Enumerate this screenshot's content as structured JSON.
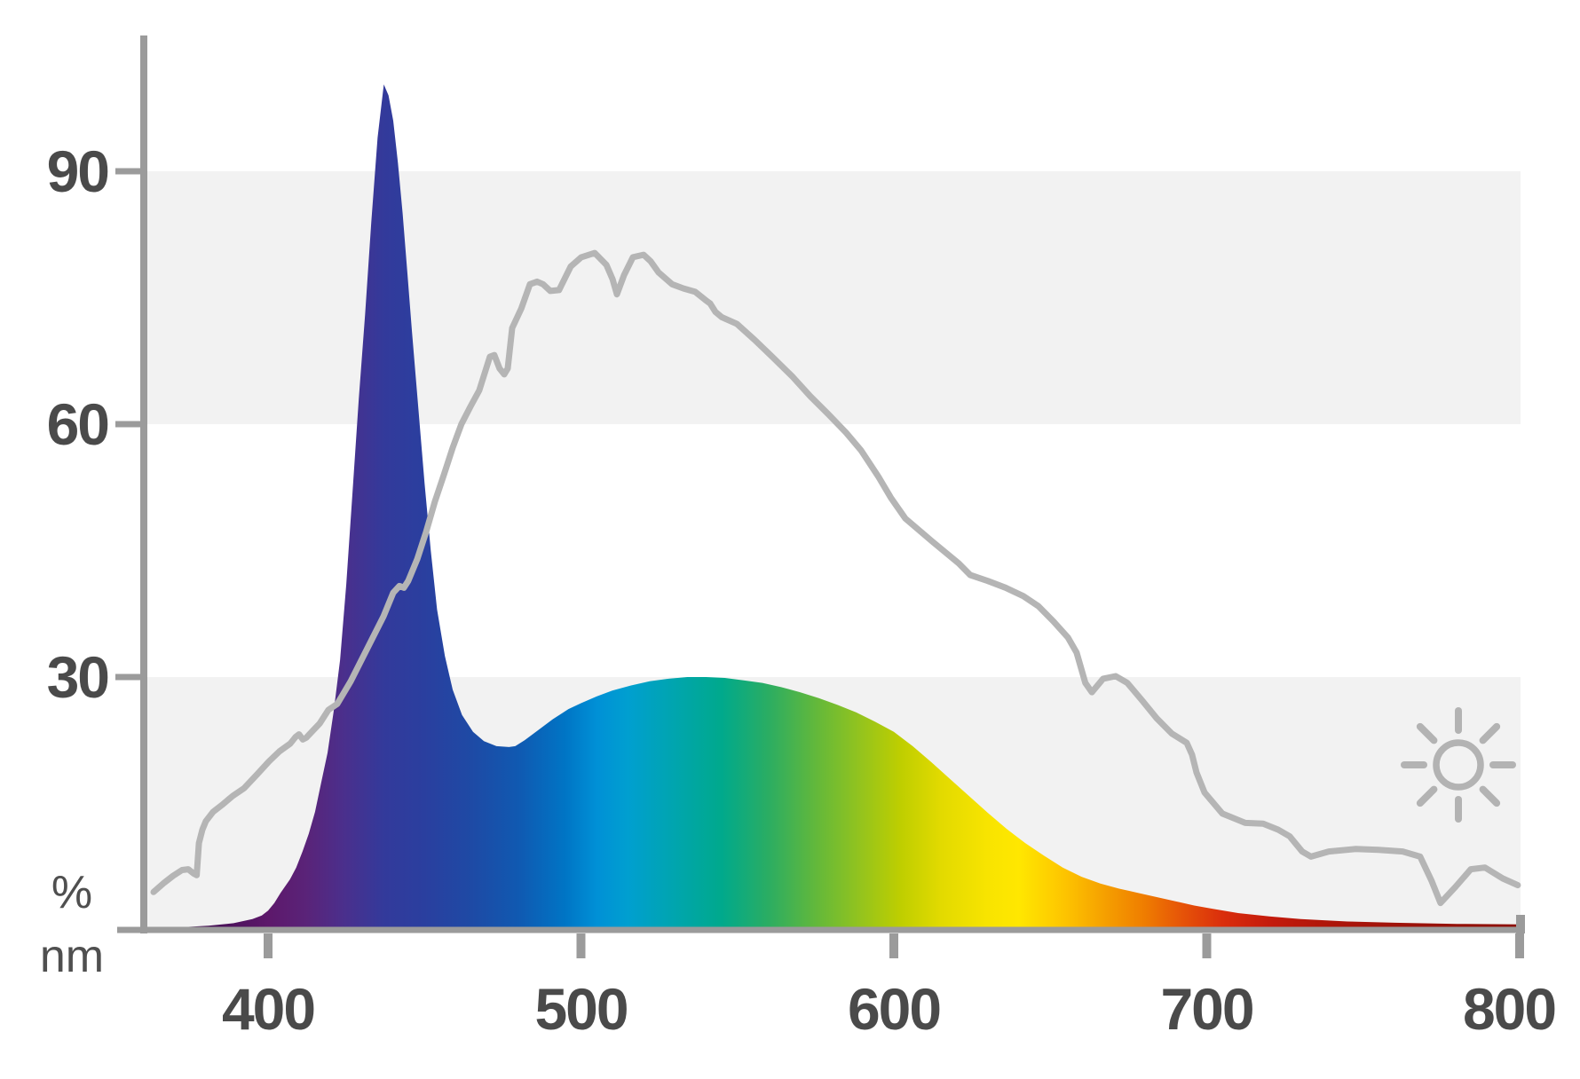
{
  "chart_data": {
    "type": "area",
    "title": "",
    "xlabel": "nm",
    "ylabel": "%",
    "xlim": [
      360,
      800
    ],
    "ylim": [
      0,
      105
    ],
    "x_ticks": [
      400,
      500,
      600,
      700,
      800
    ],
    "y_ticks": [
      90,
      60,
      30
    ],
    "grid": "horizontal gray bands from 0-30% and 60-90%",
    "band_ranges_pct": [
      [
        0,
        30
      ],
      [
        60,
        90
      ]
    ],
    "band_color": "#f2f2f2",
    "legend": "none",
    "series": [
      {
        "name": "led-spectrum",
        "style": "filled area with wavelength rainbow gradient",
        "points_nm_pct": [
          [
            360.5,
            0.15
          ],
          [
            372,
            0.3
          ],
          [
            381,
            0.5
          ],
          [
            389,
            0.8
          ],
          [
            395,
            1.3
          ],
          [
            398,
            1.7
          ],
          [
            400,
            2.3
          ],
          [
            402,
            3.2
          ],
          [
            404,
            4.4
          ],
          [
            407,
            6.0
          ],
          [
            409,
            7.4
          ],
          [
            411,
            9.3
          ],
          [
            413,
            11.4
          ],
          [
            415,
            14.0
          ],
          [
            417,
            17.5
          ],
          [
            419,
            21.0
          ],
          [
            421,
            26.0
          ],
          [
            423,
            32.0
          ],
          [
            425,
            41.0
          ],
          [
            427,
            52.0
          ],
          [
            429,
            63.0
          ],
          [
            431,
            73.0
          ],
          [
            433,
            84.0
          ],
          [
            435,
            94.0
          ],
          [
            437,
            100.3
          ],
          [
            438.5,
            99.0
          ],
          [
            440,
            96.0
          ],
          [
            441.5,
            91.0
          ],
          [
            443,
            85.0
          ],
          [
            444.5,
            78.0
          ],
          [
            446,
            71.0
          ],
          [
            448,
            62.0
          ],
          [
            450,
            53.0
          ],
          [
            452,
            45.0
          ],
          [
            454,
            38.0
          ],
          [
            456.5,
            32.5
          ],
          [
            459,
            28.5
          ],
          [
            462,
            25.5
          ],
          [
            465.5,
            23.5
          ],
          [
            469,
            22.4
          ],
          [
            473,
            21.8
          ],
          [
            477,
            21.7
          ],
          [
            479,
            21.8
          ],
          [
            482,
            22.5
          ],
          [
            486,
            23.6
          ],
          [
            491,
            25.0
          ],
          [
            496,
            26.2
          ],
          [
            500,
            26.9
          ],
          [
            505,
            27.7
          ],
          [
            510,
            28.4
          ],
          [
            516,
            29.0
          ],
          [
            522,
            29.5
          ],
          [
            528,
            29.8
          ],
          [
            534,
            30.0
          ],
          [
            540,
            30.0
          ],
          [
            546,
            29.9
          ],
          [
            552,
            29.6
          ],
          [
            558,
            29.3
          ],
          [
            564,
            28.8
          ],
          [
            570,
            28.2
          ],
          [
            576,
            27.5
          ],
          [
            582,
            26.7
          ],
          [
            588,
            25.8
          ],
          [
            594,
            24.7
          ],
          [
            600,
            23.5
          ],
          [
            606,
            21.8
          ],
          [
            612,
            19.9
          ],
          [
            618,
            17.9
          ],
          [
            624,
            15.9
          ],
          [
            630,
            13.9
          ],
          [
            636,
            12.0
          ],
          [
            642,
            10.3
          ],
          [
            648,
            8.8
          ],
          [
            654,
            7.4
          ],
          [
            660,
            6.3
          ],
          [
            666,
            5.5
          ],
          [
            672,
            4.9
          ],
          [
            678,
            4.4
          ],
          [
            684,
            3.9
          ],
          [
            690,
            3.4
          ],
          [
            696,
            2.9
          ],
          [
            702,
            2.5
          ],
          [
            710,
            2.0
          ],
          [
            720,
            1.6
          ],
          [
            730,
            1.3
          ],
          [
            745,
            1.0
          ],
          [
            760,
            0.85
          ],
          [
            780,
            0.72
          ],
          [
            800,
            0.65
          ]
        ]
      },
      {
        "name": "reference-curve",
        "style": "gray line",
        "color": "#b5b5b5",
        "points_nm_pct": [
          [
            363.4,
            4.5
          ],
          [
            366.8,
            5.6
          ],
          [
            369.6,
            6.4
          ],
          [
            372.5,
            7.1
          ],
          [
            374.5,
            7.2
          ],
          [
            376.2,
            6.7
          ],
          [
            377.2,
            6.5
          ],
          [
            377.9,
            10.3
          ],
          [
            379,
            11.9
          ],
          [
            380.1,
            12.9
          ],
          [
            382.4,
            14.0
          ],
          [
            385.2,
            14.8
          ],
          [
            388.7,
            15.9
          ],
          [
            392.3,
            16.8
          ],
          [
            396.6,
            18.5
          ],
          [
            400.3,
            20.0
          ],
          [
            403.7,
            21.2
          ],
          [
            407.1,
            22.1
          ],
          [
            408.8,
            22.9
          ],
          [
            409.9,
            23.2
          ],
          [
            411.1,
            22.6
          ],
          [
            412.2,
            22.8
          ],
          [
            414.2,
            23.6
          ],
          [
            416.5,
            24.5
          ],
          [
            419.3,
            26.1
          ],
          [
            422.1,
            26.8
          ],
          [
            426.4,
            29.5
          ],
          [
            430.1,
            32.2
          ],
          [
            433.5,
            34.7
          ],
          [
            436.9,
            37.2
          ],
          [
            440,
            40.0
          ],
          [
            442,
            40.8
          ],
          [
            443.4,
            40.6
          ],
          [
            444.8,
            41.4
          ],
          [
            447.7,
            44.0
          ],
          [
            450.5,
            47.2
          ],
          [
            453.3,
            50.8
          ],
          [
            456.2,
            54.0
          ],
          [
            459,
            57.2
          ],
          [
            461.8,
            60.0
          ],
          [
            464.7,
            62.1
          ],
          [
            467.5,
            64.0
          ],
          [
            470.9,
            68.0
          ],
          [
            472.3,
            68.2
          ],
          [
            474,
            66.6
          ],
          [
            475.5,
            65.9
          ],
          [
            476.6,
            66.6
          ],
          [
            478,
            71.4
          ],
          [
            480.9,
            73.7
          ],
          [
            483.7,
            76.6
          ],
          [
            486,
            76.9
          ],
          [
            487.9,
            76.6
          ],
          [
            490.2,
            75.8
          ],
          [
            493,
            75.9
          ],
          [
            496.7,
            78.7
          ],
          [
            500.1,
            79.8
          ],
          [
            504.4,
            80.3
          ],
          [
            508.1,
            78.9
          ],
          [
            510.1,
            77.2
          ],
          [
            511.5,
            75.4
          ],
          [
            513.8,
            77.7
          ],
          [
            516.6,
            79.8
          ],
          [
            520,
            80.1
          ],
          [
            522.3,
            79.3
          ],
          [
            524.8,
            78.0
          ],
          [
            529.1,
            76.6
          ],
          [
            532.8,
            76.1
          ],
          [
            536.5,
            75.7
          ],
          [
            539.9,
            74.7
          ],
          [
            541.3,
            74.3
          ],
          [
            543,
            73.3
          ],
          [
            545,
            72.7
          ],
          [
            549.8,
            71.9
          ],
          [
            555.5,
            70.0
          ],
          [
            561.1,
            68.0
          ],
          [
            567.7,
            65.6
          ],
          [
            573.3,
            63.3
          ],
          [
            579,
            61.2
          ],
          [
            584.7,
            59.0
          ],
          [
            589.5,
            56.9
          ],
          [
            595,
            53.8
          ],
          [
            599,
            51.3
          ],
          [
            603.7,
            48.8
          ],
          [
            612.2,
            46.1
          ],
          [
            620.7,
            43.5
          ],
          [
            624.4,
            42.1
          ],
          [
            630,
            41.4
          ],
          [
            635.7,
            40.6
          ],
          [
            641.4,
            39.6
          ],
          [
            646.2,
            38.4
          ],
          [
            651,
            36.6
          ],
          [
            655.6,
            34.7
          ],
          [
            658.4,
            32.9
          ],
          [
            661.2,
            29.3
          ],
          [
            663.3,
            28.2
          ],
          [
            666.9,
            29.8
          ],
          [
            670.9,
            30.1
          ],
          [
            674.6,
            29.3
          ],
          [
            679.4,
            27.2
          ],
          [
            684,
            25.1
          ],
          [
            688.8,
            23.3
          ],
          [
            693.6,
            22.2
          ],
          [
            695.3,
            20.8
          ],
          [
            696.7,
            18.7
          ],
          [
            699.3,
            16.3
          ],
          [
            705,
            13.8
          ],
          [
            712.3,
            12.7
          ],
          [
            718,
            12.6
          ],
          [
            722.8,
            11.9
          ],
          [
            726.5,
            11.1
          ],
          [
            730.5,
            9.3
          ],
          [
            733.3,
            8.7
          ],
          [
            739,
            9.3
          ],
          [
            747.5,
            9.6
          ],
          [
            754.9,
            9.5
          ],
          [
            762.6,
            9.3
          ],
          [
            768.2,
            8.7
          ],
          [
            771.9,
            5.8
          ],
          [
            774.7,
            3.2
          ],
          [
            779.5,
            5.1
          ],
          [
            784.4,
            7.2
          ],
          [
            788.9,
            7.4
          ],
          [
            794.6,
            6.1
          ],
          [
            799.4,
            5.3
          ]
        ]
      }
    ],
    "annotations": [
      {
        "name": "sun-icon",
        "position": "lower-right inside plot",
        "color": "#b3b3b3"
      }
    ]
  },
  "axis": {
    "y_tick_labels": [
      "90",
      "60",
      "30"
    ],
    "x_tick_labels": [
      "400",
      "500",
      "600",
      "700",
      "800"
    ],
    "y_unit_label": "%",
    "x_unit_label": "nm",
    "axis_color": "#9b9b9b",
    "label_color": "#4a4a4a"
  },
  "colors": {
    "background": "#ffffff",
    "band": "#f2f2f2",
    "reference_curve": "#b5b5b5",
    "sun_icon": "#b3b3b3",
    "spectrum_stops": [
      [
        360,
        "#2e0a3c"
      ],
      [
        385,
        "#4a1159"
      ],
      [
        400,
        "#5d186b"
      ],
      [
        412,
        "#5a2378"
      ],
      [
        424,
        "#4b2f8c"
      ],
      [
        437,
        "#333a9b"
      ],
      [
        450,
        "#2a3f9f"
      ],
      [
        465,
        "#1e4aa5"
      ],
      [
        480,
        "#1059b1"
      ],
      [
        495,
        "#0075c5"
      ],
      [
        505,
        "#0090d6"
      ],
      [
        515,
        "#009fd0"
      ],
      [
        530,
        "#00a5ae"
      ],
      [
        545,
        "#00a98c"
      ],
      [
        560,
        "#2bad62"
      ],
      [
        575,
        "#62b83b"
      ],
      [
        590,
        "#96c41c"
      ],
      [
        602,
        "#bece00"
      ],
      [
        615,
        "#e2da00"
      ],
      [
        630,
        "#f8e400"
      ],
      [
        640,
        "#ffe700"
      ],
      [
        655,
        "#fdc300"
      ],
      [
        668,
        "#f59e00"
      ],
      [
        680,
        "#ef7d00"
      ],
      [
        692,
        "#e65408"
      ],
      [
        705,
        "#da2e0c"
      ],
      [
        720,
        "#c41b0c"
      ],
      [
        740,
        "#ad150a"
      ],
      [
        770,
        "#99120a"
      ],
      [
        800,
        "#8c1007"
      ]
    ]
  }
}
